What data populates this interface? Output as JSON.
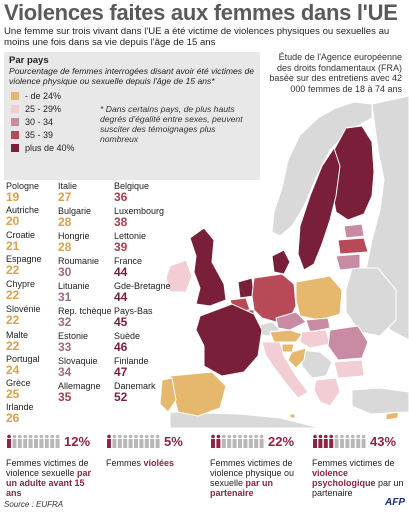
{
  "title": "Violences faites aux femmes dans l'UE",
  "subtitle": "Une femme sur trois vivant dans l'UE a été victime de violences physiques ou sexuelles au moins une fois dans sa vie depuis l'âge de 15 ans",
  "legend": {
    "title": "Par pays",
    "description": "Pourcentage de femmes interrogées disant avoir été victimes de violence physique ou sexuelle depuis l'âge de 15 ans*",
    "bins": [
      {
        "label": "- de 24%",
        "color": "#e6b86d"
      },
      {
        "label": "25 - 29%",
        "color": "#f2cdd3"
      },
      {
        "label": "30 - 34",
        "color": "#c98aa3"
      },
      {
        "label": "35 - 39",
        "color": "#b84a58"
      },
      {
        "label": "plus de 40%",
        "color": "#7a1f3a"
      }
    ],
    "note": "* Dans certains pays, de plus hauts degrés d'égalité entre sexes, peuvent susciter des témoignages plus nombreux"
  },
  "study_note": "Étude de l'Agence européenne des droits fondamentaux (FRA) basée sur des entretiens avec 42 000 femmes de 18 à 74 ans",
  "countries": [
    {
      "name": "Pologne",
      "value": "19"
    },
    {
      "name": "Autriche",
      "value": "20"
    },
    {
      "name": "Croatie",
      "value": "21"
    },
    {
      "name": "Espagne",
      "value": "22"
    },
    {
      "name": "Chypre",
      "value": "22"
    },
    {
      "name": "Slovénie",
      "value": "22"
    },
    {
      "name": "Malte",
      "value": "22"
    },
    {
      "name": "Portugal",
      "value": "24"
    },
    {
      "name": "Grèce",
      "value": "25"
    },
    {
      "name": "Irlande",
      "value": "26"
    },
    {
      "name": "Italie",
      "value": "27"
    },
    {
      "name": "Bulgarie",
      "value": "28"
    },
    {
      "name": "Hongrie",
      "value": "28"
    },
    {
      "name": "Roumanie",
      "value": "30"
    },
    {
      "name": "Lituanie",
      "value": "31"
    },
    {
      "name": "Rep. tchèque",
      "value": "32"
    },
    {
      "name": "Estonie",
      "value": "33"
    },
    {
      "name": "Slovaquie",
      "value": "34"
    },
    {
      "name": "Allemagne",
      "value": "35"
    },
    {
      "name": "Belgique",
      "value": "36"
    },
    {
      "name": "Luxembourg",
      "value": "38"
    },
    {
      "name": "Lettonie",
      "value": "39"
    },
    {
      "name": "France",
      "value": "44"
    },
    {
      "name": "Gde-Bretagne",
      "value": "44"
    },
    {
      "name": "Pays-Bas",
      "value": "45"
    },
    {
      "name": "Suède",
      "value": "46"
    },
    {
      "name": "Finlande",
      "value": "47"
    },
    {
      "name": "Danemark",
      "value": "52"
    }
  ],
  "stats": [
    {
      "pct": "12%",
      "icons_total": 10,
      "icons_filled": 1,
      "text_pre": "Femmes victimes de violence sexuelle ",
      "text_hl": "par un adulte avant 15 ans"
    },
    {
      "pct": "5%",
      "icons_total": 10,
      "icons_filled": 1,
      "text_pre": "Femmes ",
      "text_hl": "violées"
    },
    {
      "pct": "22%",
      "icons_total": 10,
      "icons_filled": 2,
      "text_pre": "Femmes victimes de violence physique ou sexuelle ",
      "text_hl": "par un partenaire"
    },
    {
      "pct": "43%",
      "icons_total": 10,
      "icons_filled": 4,
      "text_pre": "Femmes victimes de ",
      "text_hl": "violence psychologique",
      "text_post": " par un partenaire"
    }
  ],
  "source": "Source : EUFRA",
  "logo": "AFP",
  "colors": {
    "title": "#5a5a5a",
    "accent": "#8a2543",
    "sea": "#ffffff",
    "non_eu": "#d9d9d9",
    "border": "#ffffff"
  }
}
